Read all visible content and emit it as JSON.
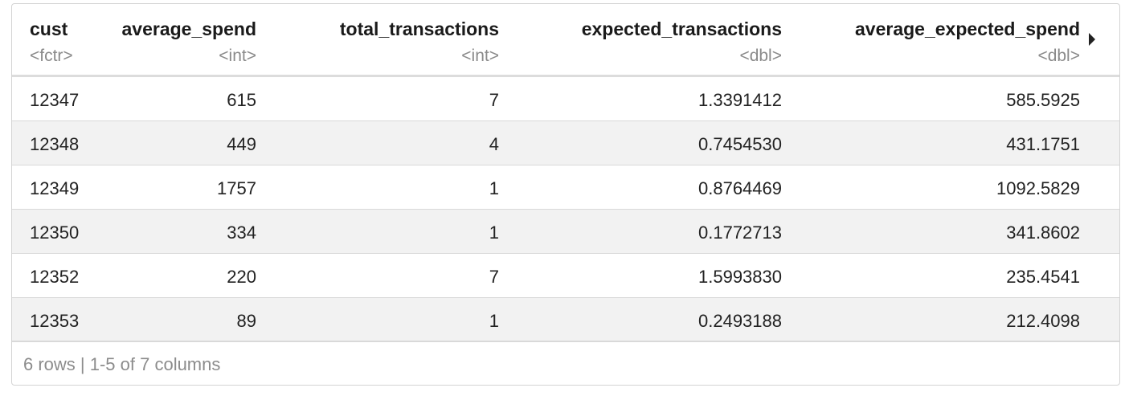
{
  "columns": [
    {
      "name": "cust",
      "type": "<fctr>"
    },
    {
      "name": "average_spend",
      "type": "<int>"
    },
    {
      "name": "total_transactions",
      "type": "<int>"
    },
    {
      "name": "expected_transactions",
      "type": "<dbl>"
    },
    {
      "name": "average_expected_spend",
      "type": "<dbl>"
    }
  ],
  "rows": [
    [
      "12347",
      "615",
      "7",
      "1.3391412",
      "585.5925"
    ],
    [
      "12348",
      "449",
      "4",
      "0.7454530",
      "431.1751"
    ],
    [
      "12349",
      "1757",
      "1",
      "0.8764469",
      "1092.5829"
    ],
    [
      "12350",
      "334",
      "1",
      "0.1772713",
      "341.8602"
    ],
    [
      "12352",
      "220",
      "7",
      "1.5993830",
      "235.4541"
    ],
    [
      "12353",
      "89",
      "1",
      "0.2493188",
      "212.4098"
    ]
  ],
  "footer": {
    "summary": "6 rows | 1-5 of 7 columns"
  },
  "icons": {
    "next_columns": "triangle-right-icon"
  },
  "colors": {
    "alt_row": "#f2f2f2",
    "type_label": "#8a8a8a",
    "footer_text": "#8c8c8c"
  }
}
